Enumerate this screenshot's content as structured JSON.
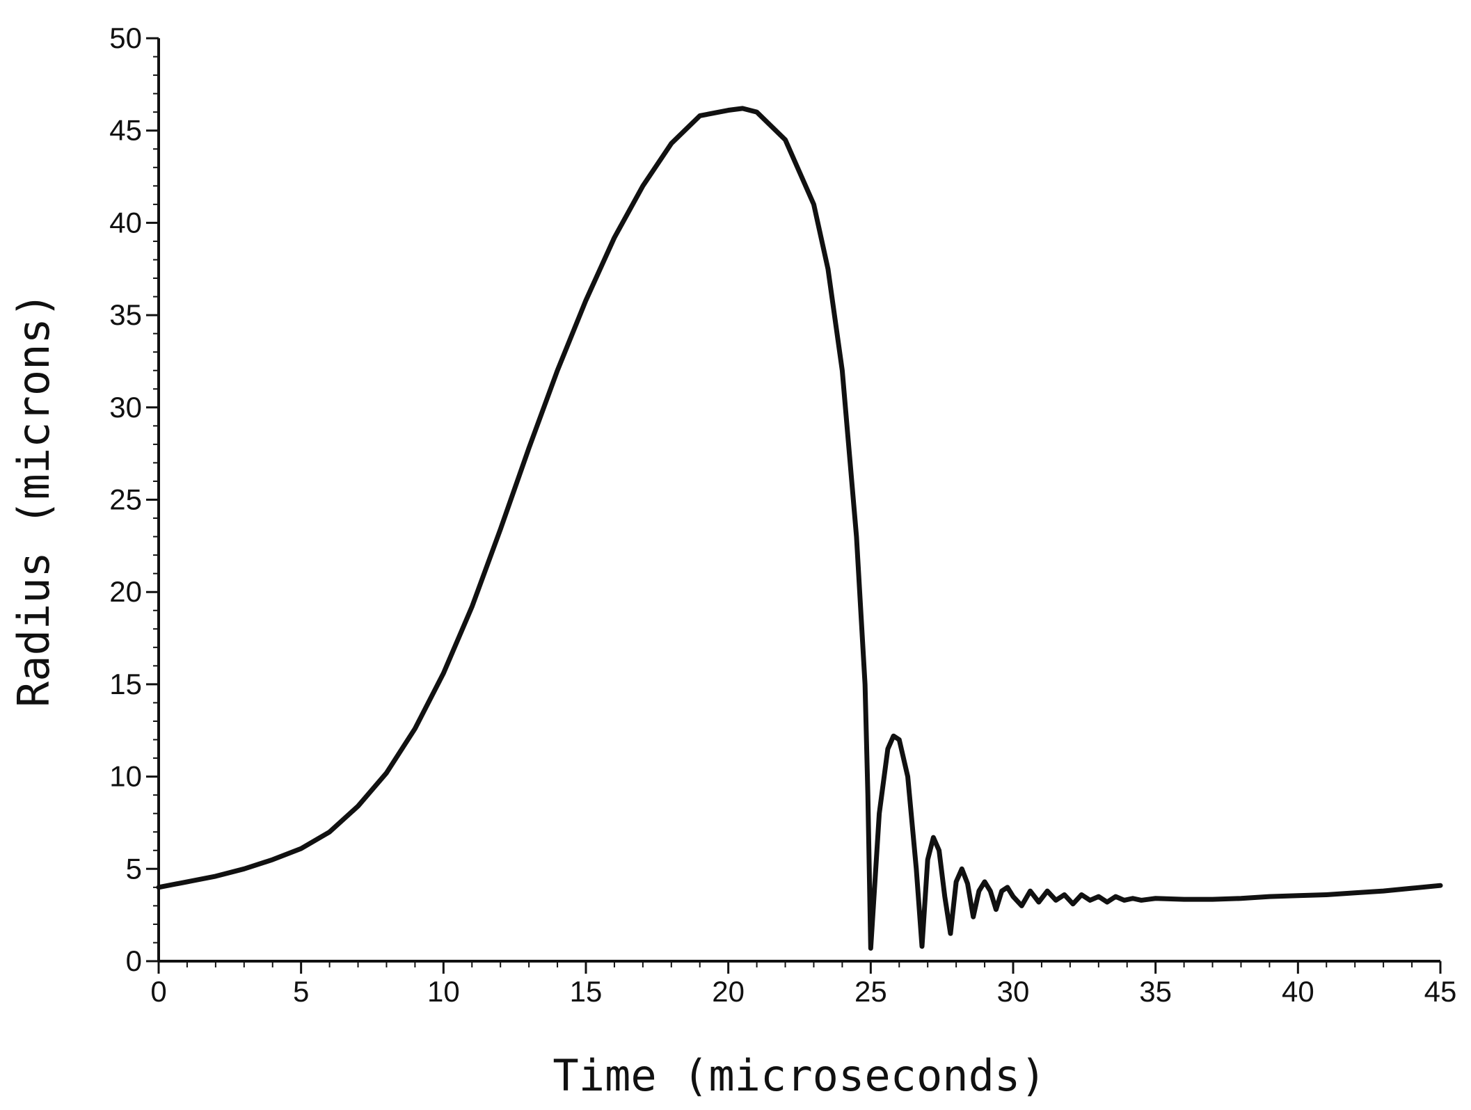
{
  "chart_data": {
    "type": "line",
    "title": "",
    "xlabel": "Time (microseconds)",
    "ylabel": "Radius (microns)",
    "xlim": [
      0,
      45
    ],
    "ylim": [
      0,
      50
    ],
    "x_ticks": [
      "0",
      "5",
      "10",
      "15",
      "20",
      "25",
      "30",
      "35",
      "40",
      "45"
    ],
    "y_ticks": [
      "0",
      "5",
      "10",
      "15",
      "20",
      "25",
      "30",
      "35",
      "40",
      "45",
      "50"
    ],
    "grid": false,
    "legend": "none",
    "line_color": "#111111",
    "series": [
      {
        "x": [
          0,
          1,
          2,
          3,
          4,
          5,
          6,
          7,
          8,
          9,
          10,
          11,
          12,
          13,
          14,
          15,
          16,
          17,
          18,
          19,
          20,
          20.5,
          21,
          22,
          23,
          23.5,
          24,
          24.5,
          24.8,
          24.9,
          25.0,
          25.3,
          25.6,
          25.8,
          26.0,
          26.3,
          26.6,
          26.8,
          27.0,
          27.2,
          27.4,
          27.6,
          27.8,
          28.0,
          28.2,
          28.4,
          28.6,
          28.8,
          29.0,
          29.2,
          29.4,
          29.6,
          29.8,
          30.0,
          30.3,
          30.6,
          30.9,
          31.2,
          31.5,
          31.8,
          32.1,
          32.4,
          32.7,
          33.0,
          33.3,
          33.6,
          33.9,
          34.2,
          34.5,
          35.0,
          36,
          37,
          38,
          39,
          40,
          41,
          42,
          43,
          44,
          45
        ],
        "y": [
          4.0,
          4.3,
          4.6,
          5.0,
          5.5,
          6.1,
          7.0,
          8.4,
          10.2,
          12.6,
          15.6,
          19.2,
          23.4,
          27.8,
          32.0,
          35.8,
          39.2,
          42.0,
          44.3,
          45.8,
          46.1,
          46.2,
          46.0,
          44.5,
          41.0,
          37.5,
          32.0,
          23.0,
          15.0,
          9.0,
          0.7,
          8.0,
          11.5,
          12.2,
          12.0,
          10.0,
          5.0,
          0.8,
          5.5,
          6.7,
          6.0,
          3.5,
          1.5,
          4.3,
          5.0,
          4.2,
          2.4,
          3.8,
          4.3,
          3.8,
          2.8,
          3.8,
          4.0,
          3.5,
          3.0,
          3.8,
          3.2,
          3.8,
          3.3,
          3.6,
          3.1,
          3.6,
          3.3,
          3.5,
          3.2,
          3.5,
          3.3,
          3.4,
          3.3,
          3.4,
          3.35,
          3.35,
          3.4,
          3.5,
          3.55,
          3.6,
          3.7,
          3.8,
          3.95,
          4.1
        ]
      }
    ]
  }
}
